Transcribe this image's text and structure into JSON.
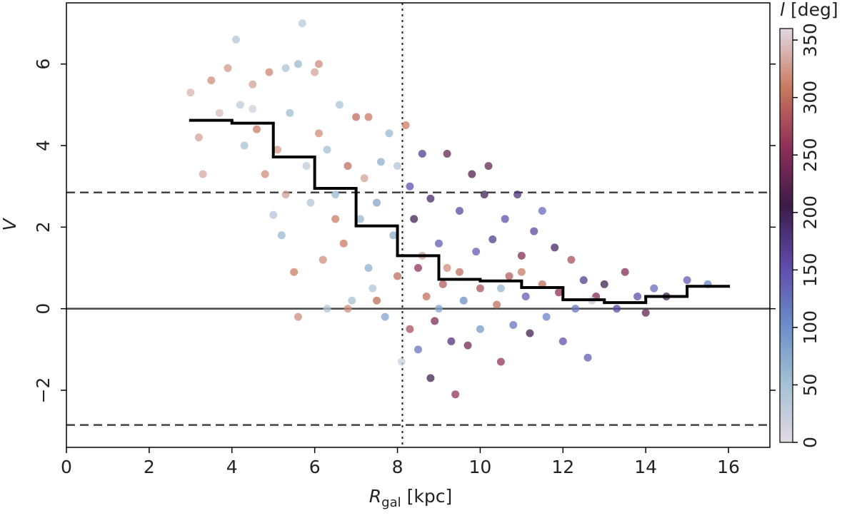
{
  "chart_data": {
    "type": "scatter",
    "xlabel": {
      "symbol": "R",
      "subscript": "gal",
      "unit": "[kpc]"
    },
    "ylabel": "V",
    "colorbar": {
      "symbol": "l",
      "unit": "[deg]",
      "clim": [
        0,
        360
      ],
      "ticks": [
        0,
        50,
        100,
        150,
        200,
        250,
        300,
        350
      ],
      "colormap": [
        "#e2d9e2",
        "#a3c1d3",
        "#6b8cc8",
        "#5f4aab",
        "#3b1c47",
        "#8e2f58",
        "#c9795f",
        "#e2d9e2"
      ]
    },
    "xlim": [
      0,
      17
    ],
    "ylim": [
      -3.4,
      7.5
    ],
    "xticks": [
      0,
      2,
      4,
      6,
      8,
      10,
      12,
      14,
      16
    ],
    "yticks": [
      {
        "value": -2,
        "label": "−2"
      },
      0,
      2,
      4,
      6
    ],
    "series": [
      {
        "x": [
          3.0,
          3.2,
          3.3,
          3.5,
          3.7,
          3.9,
          4.1,
          4.2,
          4.3,
          4.5,
          4.6,
          4.8,
          4.9,
          5.0,
          5.1,
          5.2,
          5.3,
          5.4,
          5.5,
          5.6,
          5.6,
          5.7,
          5.8,
          5.9,
          6.0,
          6.1,
          6.2,
          6.3,
          6.3,
          6.5,
          6.6,
          6.7,
          6.8,
          6.9,
          7.0,
          7.1,
          7.2,
          7.3,
          7.4,
          7.5,
          7.6,
          7.7,
          7.8,
          7.9,
          8.0,
          8.0,
          8.1,
          7.5,
          6.5,
          4.5,
          5.3,
          6.8,
          7.3,
          6.1,
          8.2,
          8.3,
          8.3,
          8.4,
          8.5,
          8.5,
          8.6,
          8.7,
          8.8,
          8.8,
          8.9,
          9.0,
          9.1,
          9.2,
          9.3,
          9.4,
          9.5,
          9.5,
          9.6,
          9.7,
          9.8,
          9.9,
          10.0,
          10.0,
          10.1,
          10.2,
          10.3,
          10.4,
          10.5,
          10.6,
          10.7,
          10.8,
          10.9,
          11.0,
          11.1,
          11.2,
          11.3,
          11.5,
          11.5,
          11.6,
          11.8,
          11.9,
          12.0,
          12.2,
          12.3,
          12.5,
          12.6,
          12.8,
          13.0,
          13.3,
          13.5,
          13.8,
          14.0,
          14.2,
          14.5,
          15.0,
          15.5,
          9.0,
          10.5,
          9.2,
          11.0,
          8.6,
          12.7
        ],
        "values": [
          5.3,
          4.2,
          3.3,
          5.6,
          4.8,
          5.9,
          6.6,
          5.0,
          4.0,
          5.5,
          4.4,
          3.3,
          5.8,
          2.3,
          3.9,
          1.8,
          5.9,
          4.8,
          0.9,
          -0.2,
          6.0,
          7.0,
          3.5,
          2.6,
          5.8,
          4.3,
          1.2,
          3.9,
          0.0,
          2.8,
          5.0,
          1.6,
          3.5,
          0.2,
          4.7,
          2.2,
          3.2,
          1.0,
          0.5,
          2.6,
          3.6,
          -0.2,
          4.3,
          1.8,
          3.5,
          0.8,
          -1.3,
          0.2,
          2.2,
          4.9,
          2.8,
          0.0,
          4.7,
          6.0,
          4.5,
          3.0,
          -0.5,
          2.2,
          1.0,
          -1.0,
          3.8,
          0.3,
          2.7,
          -1.7,
          -0.3,
          1.6,
          0.6,
          3.8,
          -0.8,
          -2.1,
          2.4,
          0.9,
          0.2,
          -0.9,
          3.3,
          1.4,
          0.5,
          -0.5,
          2.8,
          3.5,
          1.7,
          0.1,
          -1.3,
          2.2,
          0.8,
          -0.4,
          2.8,
          1.3,
          0.3,
          -0.6,
          1.9,
          2.4,
          0.6,
          -0.2,
          1.5,
          0.4,
          -0.8,
          1.2,
          0.0,
          0.7,
          -1.2,
          0.3,
          0.6,
          0.0,
          0.9,
          0.3,
          -0.1,
          0.5,
          0.3,
          0.7,
          0.6,
          0.0,
          0.5,
          1.0,
          0.9,
          1.3,
          0.2
        ],
        "l": [
          340,
          330,
          335,
          320,
          345,
          325,
          40,
          30,
          50,
          330,
          310,
          320,
          315,
          40,
          325,
          60,
          45,
          55,
          310,
          320,
          60,
          35,
          30,
          40,
          330,
          320,
          320,
          50,
          40,
          60,
          45,
          310,
          300,
          50,
          300,
          60,
          330,
          70,
          40,
          80,
          70,
          80,
          60,
          70,
          40,
          300,
          20,
          300,
          310,
          20,
          330,
          320,
          310,
          320,
          310,
          150,
          280,
          200,
          260,
          120,
          170,
          300,
          190,
          200,
          250,
          140,
          290,
          230,
          180,
          260,
          160,
          300,
          100,
          240,
          220,
          140,
          280,
          90,
          200,
          230,
          170,
          300,
          260,
          150,
          290,
          120,
          180,
          250,
          140,
          200,
          160,
          130,
          300,
          110,
          190,
          260,
          150,
          280,
          120,
          170,
          140,
          250,
          200,
          160,
          250,
          150,
          230,
          130,
          200,
          140,
          110,
          80,
          60,
          320,
          310,
          330,
          30
        ]
      }
    ],
    "step": {
      "bins": [
        3,
        4,
        5,
        6,
        7,
        8,
        9,
        10,
        11,
        12,
        13,
        14,
        15,
        16
      ],
      "values": [
        4.62,
        4.55,
        3.72,
        2.95,
        2.03,
        1.3,
        0.72,
        0.68,
        0.52,
        0.22,
        0.15,
        0.3,
        0.55
      ],
      "color": "#000000"
    },
    "hlines": [
      {
        "y": 2.85,
        "style": "dashed"
      },
      {
        "y": -2.85,
        "style": "dashed"
      },
      {
        "y": 0,
        "style": "solid"
      }
    ],
    "vlines": [
      {
        "x": 8.12,
        "style": "dotted"
      }
    ]
  }
}
